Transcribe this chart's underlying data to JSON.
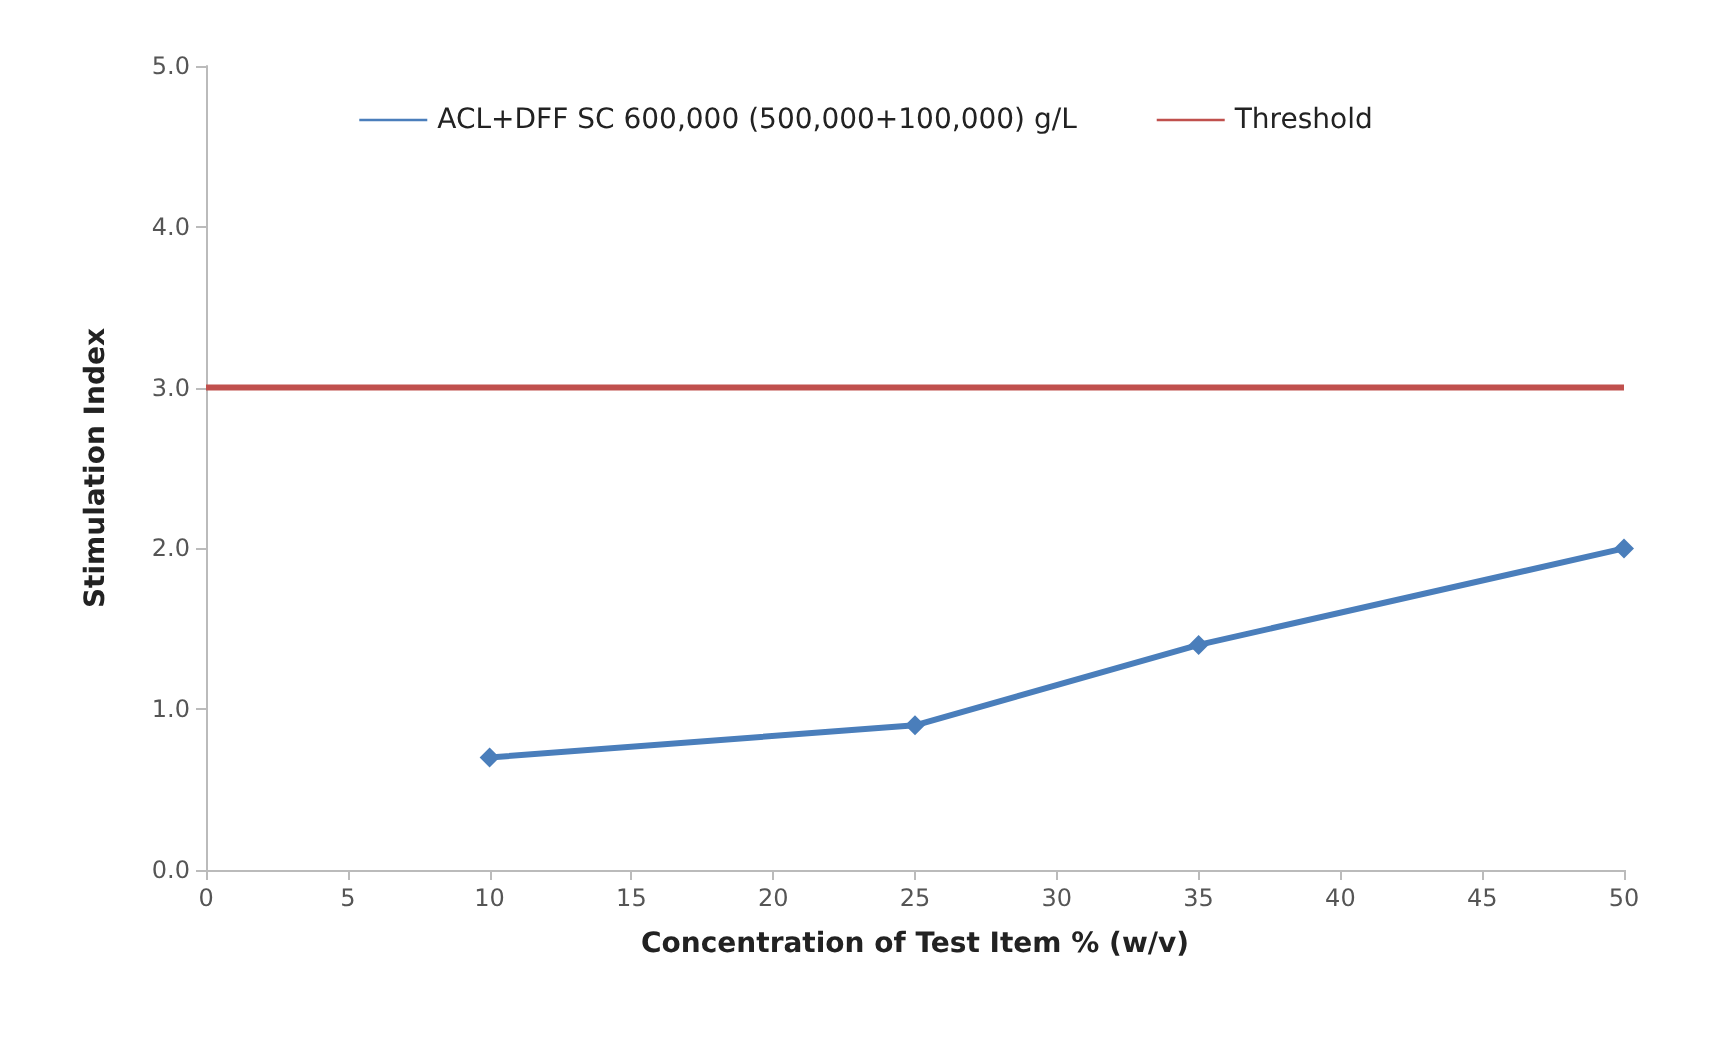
{
  "chart_data": {
    "type": "line",
    "xlabel": "Concentration of Test Item % (w/v)",
    "ylabel": "Stimulation Index",
    "series": [
      {
        "name": "ACL+DFF SC 600,000 (500,000+100,000) g/L",
        "color": "#4a7ebb",
        "x": [
          10,
          25,
          35,
          50
        ],
        "values": [
          0.7,
          0.9,
          1.4,
          2.0
        ],
        "marker": "diamond"
      },
      {
        "name": "Threshold",
        "color": "#c0504d",
        "x": [
          0,
          50
        ],
        "values": [
          3.0,
          3.0
        ],
        "marker": "none"
      }
    ],
    "xlim": [
      0,
      50
    ],
    "xticks": [
      0,
      5,
      10,
      15,
      20,
      25,
      30,
      35,
      40,
      45,
      50
    ],
    "ylim": [
      0,
      5
    ],
    "yticks": [
      {
        "value": 0,
        "label": "0.0"
      },
      {
        "value": 1,
        "label": "1.0"
      },
      {
        "value": 2,
        "label": "2.0"
      },
      {
        "value": 3,
        "label": "3.0"
      },
      {
        "value": 4,
        "label": "4.0"
      },
      {
        "value": 5,
        "label": "5.0"
      }
    ],
    "grid": false,
    "legend": "top"
  }
}
